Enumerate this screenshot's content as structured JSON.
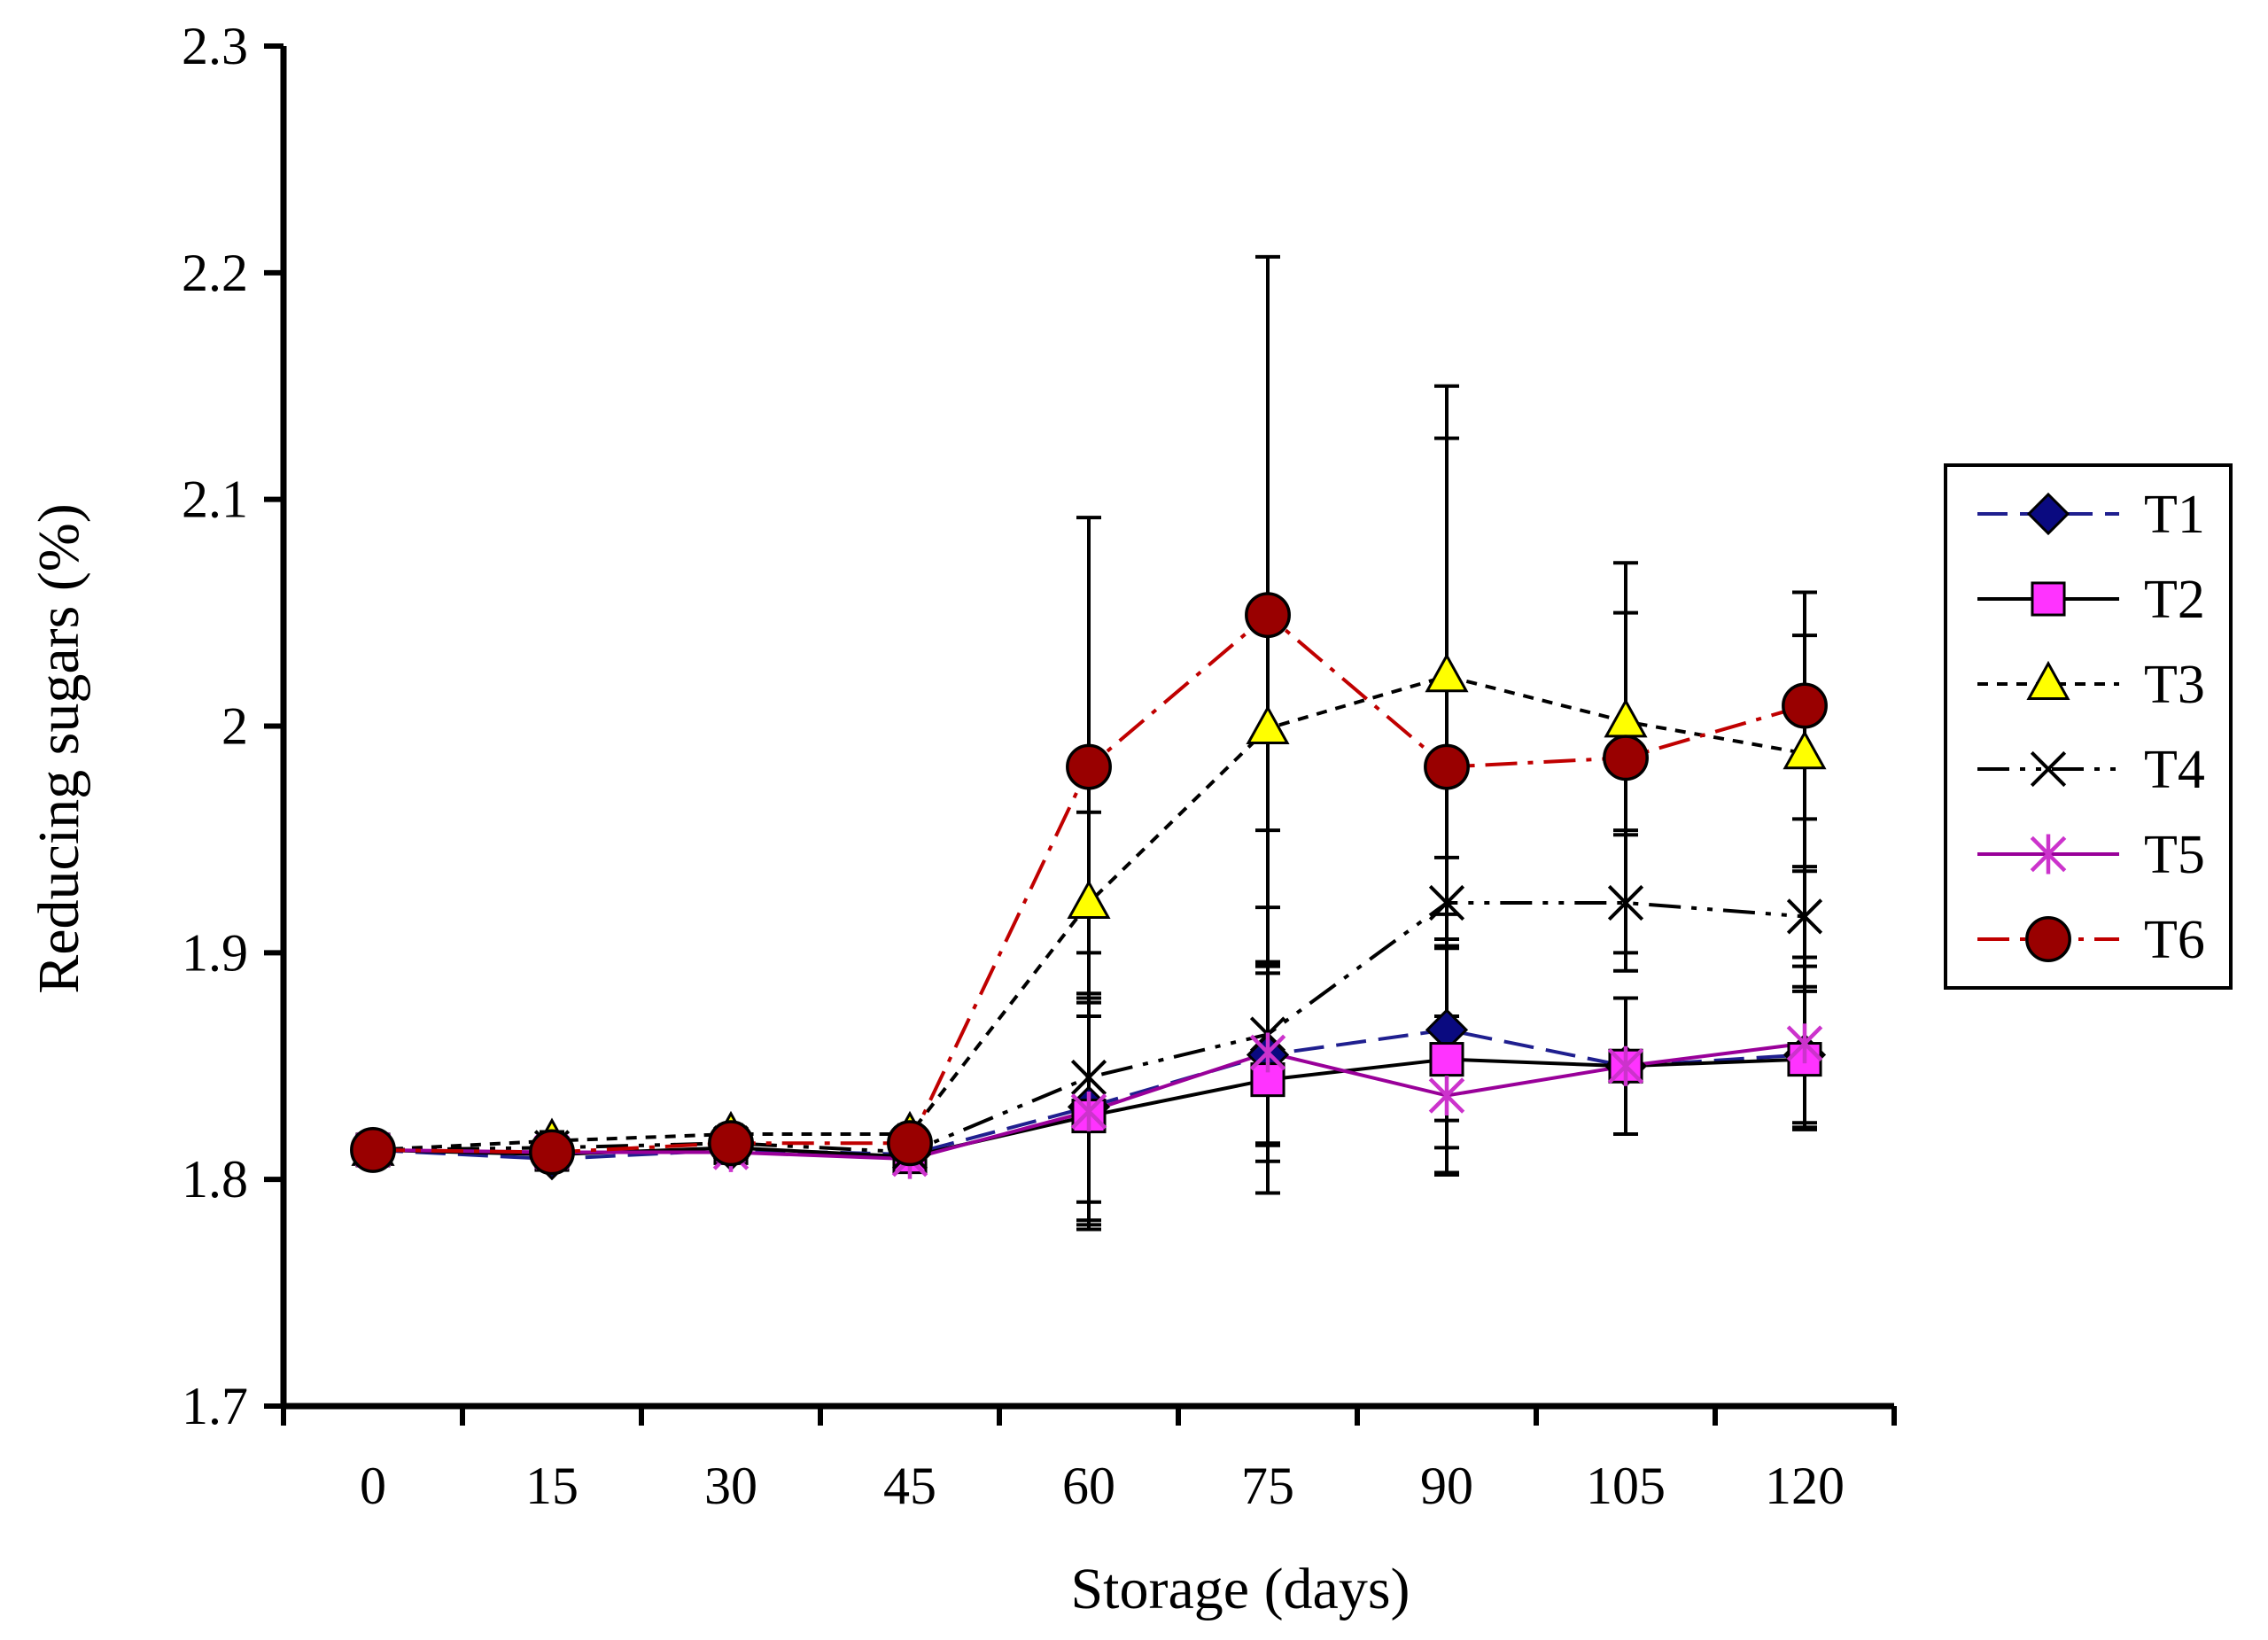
{
  "chart_data": {
    "type": "line",
    "title": "",
    "xlabel": "Storage (days)",
    "ylabel": "Reducing sugars  (%)",
    "x": [
      0,
      15,
      30,
      45,
      60,
      75,
      90,
      105,
      120
    ],
    "x_tick_labels": [
      "0",
      "15",
      "30",
      "45",
      "60",
      "75",
      "90",
      "105",
      "120"
    ],
    "y_tick_values": [
      1.7,
      1.8,
      1.9,
      2.0,
      2.1,
      2.2,
      2.3
    ],
    "y_tick_labels": [
      "1.7",
      "1.8",
      "1.9",
      "2",
      "2.1",
      "2.2",
      "2.3"
    ],
    "ylim": [
      1.7,
      2.3
    ],
    "grid": false,
    "legend_position": "right",
    "series": [
      {
        "name": "T1",
        "color": "#1f1f8f",
        "line_style": "dashed",
        "marker": "diamond",
        "marker_fill": "#0a0a80",
        "values": [
          1.813,
          1.809,
          1.813,
          1.811,
          1.832,
          1.855,
          1.866,
          1.85,
          1.855
        ],
        "errors": [
          0.003,
          0.004,
          0.004,
          0.004,
          0.05,
          0.04,
          0.04,
          0.03,
          0.03
        ]
      },
      {
        "name": "T2",
        "color": "#000000",
        "line_style": "solid",
        "marker": "square",
        "marker_fill": "#ff33ff",
        "values": [
          1.813,
          1.811,
          1.814,
          1.81,
          1.828,
          1.844,
          1.853,
          1.85,
          1.853
        ],
        "errors": [
          0.003,
          0.004,
          0.004,
          0.004,
          0.05,
          0.05,
          0.05,
          0.03,
          0.03
        ]
      },
      {
        "name": "T3",
        "color": "#000000",
        "line_style": "dotted",
        "marker": "triangle",
        "marker_fill": "#ffff00",
        "values": [
          1.813,
          1.817,
          1.82,
          1.82,
          1.922,
          1.999,
          2.022,
          2.002,
          1.988
        ],
        "errors": [
          0.003,
          0.004,
          0.004,
          0.004,
          0.04,
          0.045,
          0.105,
          0.048,
          0.052
        ]
      },
      {
        "name": "T4",
        "color": "#000000",
        "line_style": "dash-dot-dot",
        "marker": "x",
        "marker_fill": "none",
        "values": [
          1.813,
          1.814,
          1.816,
          1.812,
          1.845,
          1.864,
          1.922,
          1.922,
          1.916
        ],
        "errors": [
          0.003,
          0.004,
          0.004,
          0.004,
          0.055,
          0.056,
          0.02,
          0.03,
          0.022
        ]
      },
      {
        "name": "T5",
        "color": "#990099",
        "line_style": "solid",
        "marker": "asterisk",
        "marker_fill": "#cc33cc",
        "values": [
          1.813,
          1.812,
          1.812,
          1.809,
          1.83,
          1.856,
          1.837,
          1.85,
          1.86
        ],
        "errors": [
          0.003,
          0.004,
          0.004,
          0.004,
          0.05,
          0.04,
          0.035,
          0.03,
          0.038
        ]
      },
      {
        "name": "T6",
        "color": "#c00000",
        "line_style": "dash-dot",
        "marker": "circle",
        "marker_fill": "#990000",
        "values": [
          1.813,
          1.812,
          1.816,
          1.816,
          1.982,
          2.049,
          1.982,
          1.986,
          2.009
        ],
        "errors": [
          0.003,
          0.004,
          0.004,
          0.004,
          0.11,
          0.158,
          0.168,
          0.086,
          0.05
        ]
      }
    ]
  }
}
